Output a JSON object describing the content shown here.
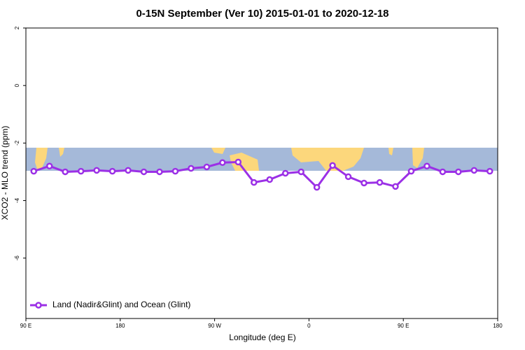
{
  "chart_data": {
    "type": "line",
    "title": "0-15N September (Ver 10)   2015-01-01 to 2020-12-18",
    "x_label": "Longitude (deg E)",
    "y_label": "XCO2 - MLO trend (ppm)",
    "x": [
      97.5,
      112.5,
      127.5,
      142.5,
      157.5,
      172.5,
      187.5,
      202.5,
      217.5,
      232.5,
      247.5,
      262.5,
      277.5,
      292.5,
      307.5,
      322.5,
      337.5,
      352.5,
      367.5,
      382.5,
      397.5,
      412.5,
      427.5,
      442.5,
      457.5,
      472.5,
      487.5,
      502.5,
      517.5,
      532.5
    ],
    "series": [
      {
        "name": "Land (Nadir&Glint) and Ocean (Glint)",
        "color": "#9b30e6",
        "values": [
          -2.98,
          -2.8,
          -3.0,
          -2.98,
          -2.95,
          -2.98,
          -2.95,
          -3.0,
          -3.0,
          -2.98,
          -2.88,
          -2.83,
          -2.68,
          -2.66,
          -3.37,
          -3.27,
          -3.05,
          -3.0,
          -3.54,
          -2.78,
          -3.17,
          -3.39,
          -3.37,
          -3.51,
          -2.98,
          -2.8,
          -3.0,
          -3.0,
          -2.95,
          -2.98
        ]
      }
    ],
    "xlim": [
      90,
      540
    ],
    "xticks": [
      {
        "value": 90,
        "label": "90 E"
      },
      180,
      {
        "value": 270,
        "label": "90 W"
      },
      {
        "value": 360,
        "label": "0"
      },
      {
        "value": 450,
        "label": "90 E"
      },
      {
        "value": 540,
        "label": "180"
      }
    ],
    "ylim": [
      -8.1,
      2
    ],
    "yticks": [
      2,
      0,
      -2,
      -4,
      -6
    ],
    "legend": "bottom-left"
  }
}
